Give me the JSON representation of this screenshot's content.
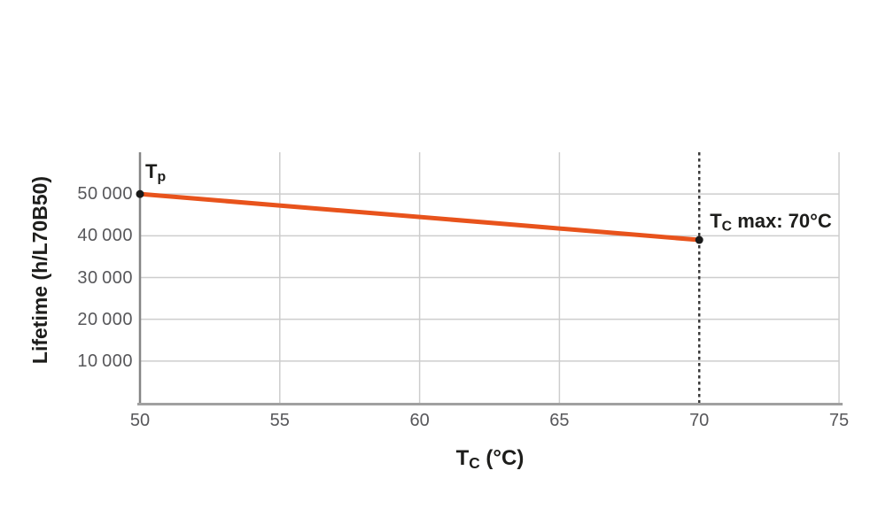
{
  "chart_data": {
    "type": "line",
    "title": "",
    "xlabel": {
      "main": "T",
      "sub": "C",
      "rest": " (°C)"
    },
    "ylabel": "Lifetime (h/L70B50)",
    "xlim": [
      50,
      75
    ],
    "ylim": [
      0,
      60000
    ],
    "x_ticks": [
      50,
      55,
      60,
      65,
      70,
      75
    ],
    "x_gridlines": [
      55,
      60,
      65,
      75
    ],
    "y_ticks": [
      10000,
      20000,
      30000,
      40000,
      50000
    ],
    "y_tick_labels": [
      "10 000",
      "20 000",
      "30 000",
      "40 000",
      "50 000"
    ],
    "grid": true,
    "legend": "none",
    "series": [
      {
        "name": "lifetime-vs-case-temperature",
        "color": "#e8531c",
        "points": [
          [
            50,
            50000
          ],
          [
            70,
            39000
          ]
        ]
      }
    ],
    "markers": {
      "color": "#1a1a1a",
      "radius": 4.5,
      "points": [
        [
          50,
          50000
        ],
        [
          70,
          39000
        ]
      ]
    },
    "vline": {
      "x": 70,
      "style": "dashed",
      "color": "#3a3a3a"
    },
    "annotations": [
      {
        "id": "tp",
        "main": "T",
        "sub": "p",
        "rest": "",
        "x": 50,
        "y": 50000,
        "position": "above-right"
      },
      {
        "id": "tc-max",
        "main": "T",
        "sub": "C",
        "rest": " max: 70°C",
        "x": 70,
        "y": 39000,
        "position": "right"
      }
    ],
    "colors": {
      "line": "#e8531c",
      "grid": "#cdcdcd",
      "x_axis": "#a0a0a0",
      "y_axis": "#858585",
      "dashed": "#3a3a3a",
      "marker": "#1a1a1a",
      "tick_text": "#57575a",
      "title_text": "#1d1d1b"
    }
  }
}
